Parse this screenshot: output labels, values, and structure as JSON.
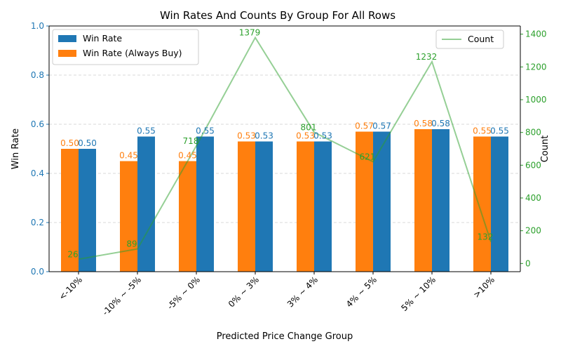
{
  "chart_data": {
    "type": "bar",
    "title": "Win Rates And Counts By Group For All Rows",
    "xlabel": "Predicted Price Change Group",
    "ylabel": "Win Rate",
    "ylabel_right": "Count",
    "categories": [
      "<-10%",
      "-10% ~ -5%",
      "-5% ~ 0%",
      "0% ~ 3%",
      "3% ~ 4%",
      "4% ~ 5%",
      "5% ~ 10%",
      ">10%"
    ],
    "series": [
      {
        "name": "Win Rate",
        "color": "#1f77b4",
        "values": [
          0.5,
          0.55,
          0.55,
          0.53,
          0.53,
          0.57,
          0.58,
          0.55
        ],
        "labels": [
          "0.50",
          "0.55",
          "0.55",
          "0.53",
          "0.53",
          "0.57",
          "0.58",
          "0.55"
        ]
      },
      {
        "name": "Win Rate (Always Buy)",
        "color": "#ff7f0e",
        "values": [
          0.5,
          0.45,
          0.45,
          0.53,
          0.53,
          0.57,
          0.58,
          0.55
        ],
        "labels": [
          "0.50",
          "0.45",
          "0.45",
          "0.53",
          "0.53",
          "0.57",
          "0.58",
          "0.55"
        ]
      }
    ],
    "line_series": {
      "name": "Count",
      "color": "#2ca02c",
      "values": [
        26,
        89,
        718,
        1379,
        801,
        621,
        1232,
        132
      ],
      "labels": [
        "26",
        "89",
        "718",
        "1379",
        "801",
        "621",
        "1232",
        "132"
      ]
    },
    "ylim": [
      0,
      1.0
    ],
    "ylim_right": [
      -50,
      1450
    ],
    "yticks": [
      "0.0",
      "0.2",
      "0.4",
      "0.6",
      "0.8",
      "1.0"
    ],
    "yticks_right": [
      "0",
      "200",
      "400",
      "600",
      "800",
      "1000",
      "1200",
      "1400"
    ],
    "grid": "horizontal dashed",
    "legend_left": "top-left",
    "legend_right": "top-right"
  }
}
